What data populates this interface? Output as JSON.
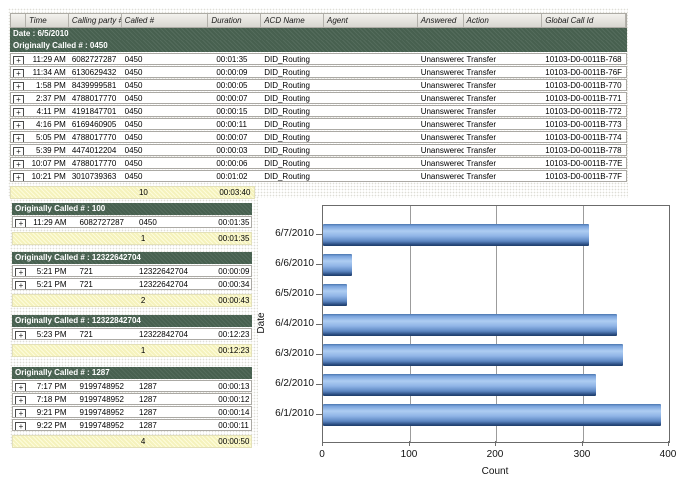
{
  "report": {
    "icons": {
      "expand": "+"
    },
    "table": {
      "columns": [
        "Time",
        "Calling party #",
        "Called #",
        "Duration",
        "ACD Name",
        "Agent",
        "Answered",
        "Action",
        "Global Call Id"
      ],
      "date_row": "Date : 6/5/2010",
      "groups": [
        {
          "title": "Originally Called # : 0450",
          "rows": [
            [
              "11:29 AM",
              "6082727287",
              "0450",
              "00:01:35",
              "DID_Routing",
              "",
              "Unanswered",
              "Transfer",
              "10103-D0-0011B-768"
            ],
            [
              "11:34 AM",
              "6130629432",
              "0450",
              "00:00:09",
              "DID_Routing",
              "",
              "Unanswered",
              "Transfer",
              "10103-D0-0011B-76F"
            ],
            [
              "1:58 PM",
              "8439999581",
              "0450",
              "00:00:05",
              "DID_Routing",
              "",
              "Unanswered",
              "Transfer",
              "10103-D0-0011B-770"
            ],
            [
              "2:37 PM",
              "4788017770",
              "0450",
              "00:00:07",
              "DID_Routing",
              "",
              "Unanswered",
              "Transfer",
              "10103-D0-0011B-771"
            ],
            [
              "4:11 PM",
              "4191847701",
              "0450",
              "00:00:15",
              "DID_Routing",
              "",
              "Unanswered",
              "Transfer",
              "10103-D0-0011B-772"
            ],
            [
              "4:16 PM",
              "6169460905",
              "0450",
              "00:00:11",
              "DID_Routing",
              "",
              "Unanswered",
              "Transfer",
              "10103-D0-0011B-773"
            ],
            [
              "5:05 PM",
              "4788017770",
              "0450",
              "00:00:07",
              "DID_Routing",
              "",
              "Unanswered",
              "Transfer",
              "10103-D0-0011B-774"
            ],
            [
              "5:39 PM",
              "4474012204",
              "0450",
              "00:00:03",
              "DID_Routing",
              "",
              "Unanswered",
              "Transfer",
              "10103-D0-0011B-778"
            ],
            [
              "10:07 PM",
              "4788017770",
              "0450",
              "00:00:06",
              "DID_Routing",
              "",
              "Unanswered",
              "Transfer",
              "10103-D0-0011B-77E"
            ],
            [
              "10:21 PM",
              "3010739363",
              "0450",
              "00:01:02",
              "DID_Routing",
              "",
              "Unanswered",
              "Transfer",
              "10103-D0-0011B-77F"
            ]
          ],
          "summary": {
            "count": "10",
            "total_duration": "00:03:40"
          }
        },
        {
          "title": "Originally Called # : 100",
          "rows": [
            [
              "11:29 AM",
              "6082727287",
              "0450",
              "00:01:35"
            ]
          ],
          "summary": {
            "count": "1",
            "total_duration": "00:01:35"
          }
        },
        {
          "title": "Originally Called # : 12322642704",
          "rows": [
            [
              "5:21 PM",
              "721",
              "12322642704",
              "00:00:09"
            ],
            [
              "5:21 PM",
              "721",
              "12322642704",
              "00:00:34"
            ]
          ],
          "summary": {
            "count": "2",
            "total_duration": "00:00:43"
          }
        },
        {
          "title": "Originally Called # : 12322842704",
          "rows": [
            [
              "5:23 PM",
              "721",
              "12322842704",
              "00:12:23"
            ]
          ],
          "summary": {
            "count": "1",
            "total_duration": "00:12:23"
          }
        },
        {
          "title": "Originally Called # : 1287",
          "rows": [
            [
              "7:17 PM",
              "9199748952",
              "1287",
              "00:00:13"
            ],
            [
              "7:18 PM",
              "9199748952",
              "1287",
              "00:00:12"
            ],
            [
              "9:21 PM",
              "9199748952",
              "1287",
              "00:00:14"
            ],
            [
              "9:22 PM",
              "9199748952",
              "1287",
              "00:00:11"
            ]
          ],
          "summary": {
            "count": "4",
            "total_duration": "00:00:50"
          }
        }
      ]
    },
    "colors": {
      "group_header_green": "#4b6353",
      "summary_yellow": "#f9f6c4",
      "header_gray": "#dcdad4",
      "bar_blue": "#6f9bd6",
      "bar_blue_dark": "#203e69",
      "gridline_gray": "#9c9c9c"
    }
  },
  "chart_data": {
    "type": "bar",
    "orientation": "horizontal",
    "categories_top_to_bottom": [
      "6/7/2010",
      "6/6/2010",
      "6/5/2010",
      "6/4/2010",
      "6/3/2010",
      "6/2/2010",
      "6/1/2010"
    ],
    "values": [
      307,
      33,
      28,
      340,
      347,
      316,
      391
    ],
    "xlabel": "Count",
    "ylabel": "Date",
    "xlim": [
      0,
      400
    ],
    "xticks": [
      0,
      100,
      200,
      300,
      400
    ],
    "grid": "vertical",
    "legend": "none"
  }
}
